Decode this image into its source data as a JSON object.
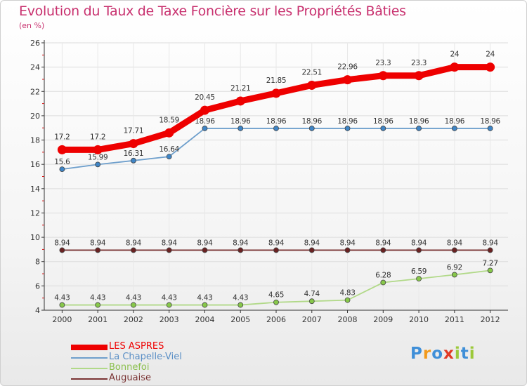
{
  "header": {
    "title": "Evolution du Taux de Taxe Foncière sur les Propriétés Bâties",
    "unit": "(en %)"
  },
  "chart_data": {
    "type": "line",
    "title": "Evolution du Taux de Taxe Foncière sur les Propriétés Bâties",
    "ylabel": "(en %)",
    "xlabel": "",
    "x": [
      "2000",
      "2001",
      "2002",
      "2003",
      "2004",
      "2005",
      "2006",
      "2007",
      "2008",
      "2009",
      "2010",
      "2011",
      "2012"
    ],
    "ylim": [
      4,
      26
    ],
    "yticks": [
      "4",
      "6",
      "8",
      "10",
      "12",
      "14",
      "16",
      "18",
      "20",
      "22",
      "24",
      "26"
    ],
    "grid": true,
    "legend_position": "bottom-left",
    "series": [
      {
        "name": "LES ASPRES",
        "color": "#ee0000",
        "emphasis": true,
        "values": [
          17.2,
          17.2,
          17.71,
          18.59,
          20.45,
          21.21,
          21.85,
          22.51,
          22.96,
          23.3,
          23.3,
          24,
          24
        ],
        "labels": [
          "17.2",
          "17.2",
          "17.71",
          "18.59",
          "20.45",
          "21.21",
          "21.85",
          "22.51",
          "22.96",
          "23.3",
          "23.3",
          "24",
          "24"
        ]
      },
      {
        "name": "La Chapelle-Viel",
        "color": "#6e9fcc",
        "point_color": "#3f85c6",
        "values": [
          15.6,
          15.99,
          16.31,
          16.64,
          18.96,
          18.96,
          18.96,
          18.96,
          18.96,
          18.96,
          18.96,
          18.96,
          18.96
        ],
        "labels": [
          "15.6",
          "15.99",
          "16.31",
          "16.64",
          "18.96",
          "18.96",
          "18.96",
          "18.96",
          "18.96",
          "18.96",
          "18.96",
          "18.96",
          "18.96"
        ]
      },
      {
        "name": "Bonnefoi",
        "color": "#b1d988",
        "point_color": "#87c84a",
        "values": [
          4.43,
          4.43,
          4.43,
          4.43,
          4.43,
          4.43,
          4.65,
          4.74,
          4.83,
          6.28,
          6.59,
          6.92,
          7.27
        ],
        "labels": [
          "4.43",
          "4.43",
          "4.43",
          "4.43",
          "4.43",
          "4.43",
          "4.65",
          "4.74",
          "4.83",
          "6.28",
          "6.59",
          "6.92",
          "7.27"
        ]
      },
      {
        "name": "Auguaise",
        "color": "#7a3434",
        "point_color": "#6a2222",
        "values": [
          8.94,
          8.94,
          8.94,
          8.94,
          8.94,
          8.94,
          8.94,
          8.94,
          8.94,
          8.94,
          8.94,
          8.94,
          8.94
        ],
        "labels": [
          "8.94",
          "8.94",
          "8.94",
          "8.94",
          "8.94",
          "8.94",
          "8.94",
          "8.94",
          "8.94",
          "8.94",
          "8.94",
          "8.94",
          "8.94"
        ]
      }
    ]
  },
  "legend": {
    "items": [
      {
        "label": "LES ASPRES",
        "color": "#ee0000",
        "text_color": "#ee0000"
      },
      {
        "label": "La Chapelle-Viel",
        "color": "#6e9fcc",
        "text_color": "#5a8fc6"
      },
      {
        "label": "Bonnefoi",
        "color": "#b1d988",
        "text_color": "#8cc04f"
      },
      {
        "label": "Auguaise",
        "color": "#7a3434",
        "text_color": "#7a3434"
      }
    ]
  },
  "brand": {
    "text": "Proxiti",
    "letters": [
      "P",
      "r",
      "o",
      "x",
      "i",
      "t",
      "i"
    ],
    "colors": [
      "#3f8fd8",
      "#f29a1b",
      "#3f8fd8",
      "#e23a25",
      "#9cc93a",
      "#3f8fd8",
      "#9cc93a"
    ]
  }
}
